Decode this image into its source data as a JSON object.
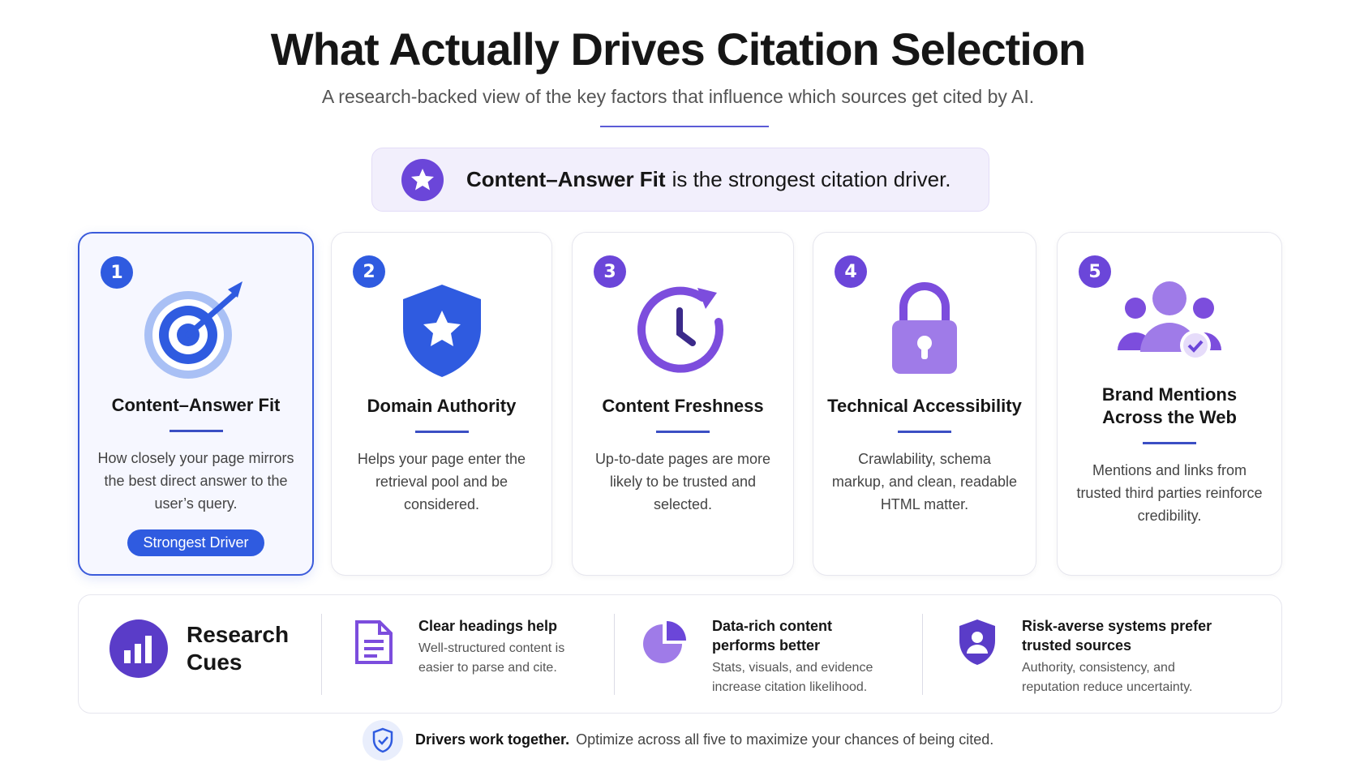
{
  "header": {
    "title": "What Actually Drives Citation Selection",
    "subtitle": "A research-backed view of the key factors that influence which sources get cited by AI."
  },
  "callout": {
    "bold": "Content–Answer Fit",
    "text": "is the strongest citation driver."
  },
  "cards": [
    {
      "number": "1",
      "title": "Content–Answer Fit",
      "description": "How closely your page mirrors the best direct answer to the user’s query.",
      "badge": "Strongest Driver"
    },
    {
      "number": "2",
      "title": "Domain Authority",
      "description": "Helps your page enter the retrieval pool and be considered."
    },
    {
      "number": "3",
      "title": "Content Freshness",
      "description": "Up-to-date pages are more likely to be trusted and selected."
    },
    {
      "number": "4",
      "title": "Technical Accessibility",
      "description": "Crawlability, schema markup, and clean, readable HTML matter."
    },
    {
      "number": "5",
      "title": "Brand Mentions Across the Web",
      "description": "Mentions and links from trusted third parties reinforce credibility."
    }
  ],
  "research": {
    "title": "Research Cues",
    "cues": [
      {
        "title": "Clear headings help",
        "text": "Well-structured content is easier to parse and cite."
      },
      {
        "title": "Data-rich content performs better",
        "text": "Stats, visuals, and evidence increase citation likelihood."
      },
      {
        "title": "Risk-averse systems prefer trusted sources",
        "text": "Authority, consistency, and reputation reduce uncertainty."
      }
    ]
  },
  "footer": {
    "bold": "Drivers work together.",
    "text": "Optimize across all five to maximize your chances of being cited."
  }
}
